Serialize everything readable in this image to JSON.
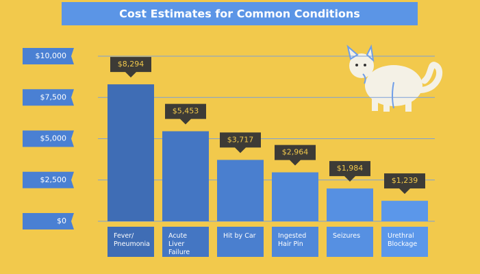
{
  "chart_data": {
    "type": "bar",
    "title": "Cost Estimates for Common Conditions",
    "categories": [
      "Fever/ Pneumonia",
      "Acute Liver Failure",
      "Hit by Car",
      "Ingested Hair Pin",
      "Seizures",
      "Urethral Blockage"
    ],
    "values": [
      8294,
      5453,
      3717,
      2964,
      1984,
      1239
    ],
    "value_labels": [
      "$8,294",
      "$5,453",
      "$3,717",
      "$2,964",
      "$1,984",
      "$1,239"
    ],
    "colors": [
      "#3f6db5",
      "#4476c3",
      "#4a7fcf",
      "#5088d9",
      "#5690e2",
      "#5b97ea"
    ],
    "ylim": [
      0,
      10000
    ],
    "yticks": [
      {
        "value": 0,
        "label": "$0"
      },
      {
        "value": 2500,
        "label": "$2,500"
      },
      {
        "value": 5000,
        "label": "$5,000"
      },
      {
        "value": 7500,
        "label": "$7,500"
      },
      {
        "value": 10000,
        "label": "$10,000"
      }
    ],
    "grid": true
  }
}
